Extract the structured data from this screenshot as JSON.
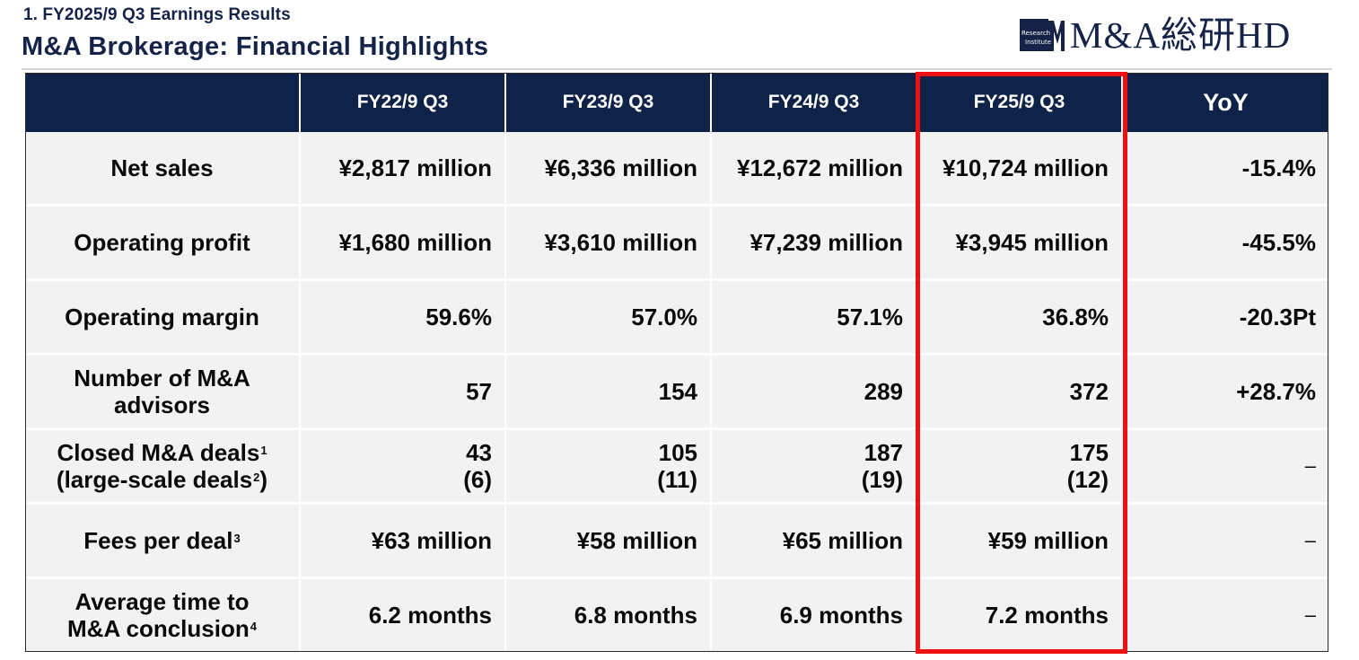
{
  "header": {
    "section": "1. FY2025/9 Q3 Earnings Results",
    "title": "M&A Brokerage: Financial Highlights"
  },
  "logo": {
    "mark_line1": "Research",
    "mark_line2": "Institute",
    "text": "M&A総研HD",
    "color": "#142347"
  },
  "table": {
    "columns": [
      "FY22/9 Q3",
      "FY23/9 Q3",
      "FY24/9 Q3",
      "FY25/9 Q3",
      "YoY"
    ],
    "rows": [
      {
        "label": "Net sales",
        "values": [
          "¥2,817 million",
          "¥6,336 million",
          "¥12,672 million",
          "¥10,724 million"
        ],
        "yoy": "-15.4%"
      },
      {
        "label": "Operating profit",
        "values": [
          "¥1,680 million",
          "¥3,610 million",
          "¥7,239 million",
          "¥3,945 million"
        ],
        "yoy": "-45.5%"
      },
      {
        "label": "Operating margin",
        "values": [
          "59.6%",
          "57.0%",
          "57.1%",
          "36.8%"
        ],
        "yoy": "-20.3Pt"
      },
      {
        "label_line1": "Number of M&A",
        "label_line2": "advisors",
        "values": [
          "57",
          "154",
          "289",
          "372"
        ],
        "yoy": "+28.7%"
      },
      {
        "label_line1": "Closed M&A deals",
        "label_sup1": "1",
        "label_line2": "(large-scale deals",
        "label_sup2": "2",
        "label_close": ")",
        "values": [
          "43",
          "105",
          "187",
          "175"
        ],
        "sub_values": [
          "(6)",
          "(11)",
          "(19)",
          "(12)"
        ],
        "yoy": "–"
      },
      {
        "label": "Fees per deal",
        "label_sup": "3",
        "values": [
          "¥63 million",
          "¥58 million",
          "¥65 million",
          "¥59 million"
        ],
        "yoy": "–"
      },
      {
        "label_line1": "Average time to",
        "label_line2": "M&A conclusion",
        "label_sup2": "4",
        "values": [
          "6.2 months",
          "6.8 months",
          "6.9 months",
          "7.2 months"
        ],
        "yoy": "–"
      }
    ]
  },
  "colors": {
    "header_bg": "#0f2248",
    "cell_bg": "#f2f2f2",
    "highlight": "#ee1111",
    "title_text": "#142347"
  }
}
